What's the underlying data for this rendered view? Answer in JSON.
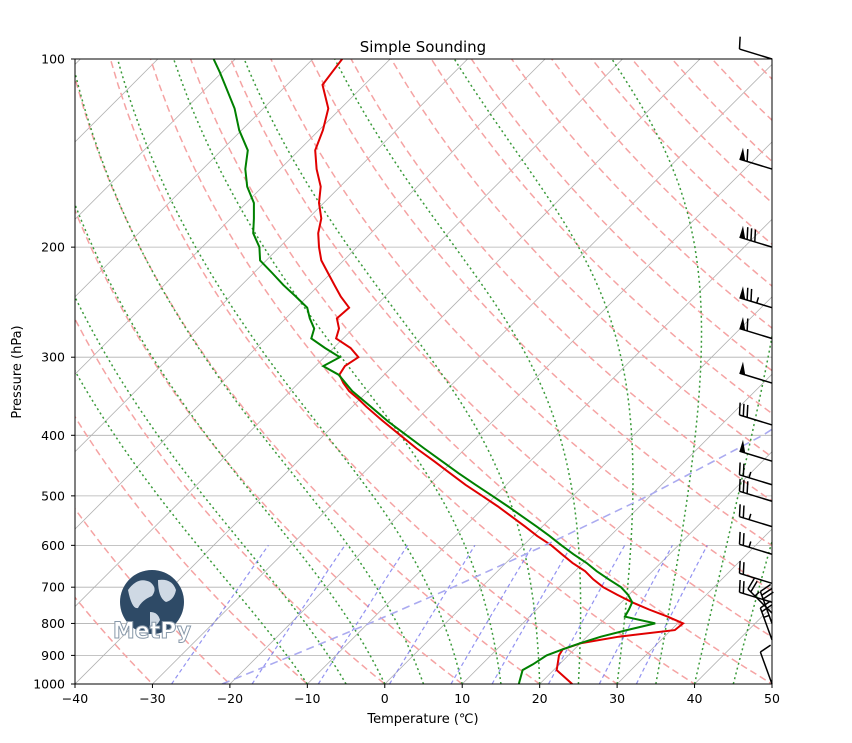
{
  "chart_data": {
    "type": "line",
    "title": "Simple Sounding",
    "xlabel": "Temperature (℃)",
    "ylabel": "Pressure (hPa)",
    "xlim": [
      -40,
      50
    ],
    "ylim": [
      1000,
      100
    ],
    "y_scale": "log",
    "skew": true,
    "x_ticks": [
      -40,
      -30,
      -20,
      -10,
      0,
      10,
      20,
      30,
      40,
      50
    ],
    "y_ticks": [
      1000,
      900,
      800,
      700,
      600,
      500,
      400,
      300,
      200,
      100
    ],
    "grid": true,
    "series": [
      {
        "quantity": "temperature",
        "color": "#e00000",
        "pressure": [
          1000,
          950,
          900,
          880,
          860,
          840,
          820,
          800,
          780,
          760,
          740,
          720,
          700,
          680,
          660,
          640,
          620,
          600,
          580,
          560,
          540,
          520,
          500,
          480,
          460,
          440,
          420,
          400,
          380,
          360,
          350,
          340,
          330,
          320,
          310,
          300,
          290,
          280,
          270,
          260,
          250,
          240,
          230,
          220,
          210,
          200,
          190,
          180,
          170,
          160,
          150,
          140,
          130,
          120,
          110,
          105,
          100
        ],
        "values": [
          24.2,
          20.4,
          18.8,
          18.5,
          20.1,
          24.1,
          30.5,
          30.7,
          27.8,
          24.5,
          21.4,
          18.5,
          15.7,
          13.4,
          11.3,
          8.6,
          6.1,
          3.6,
          0.6,
          -2.2,
          -5.2,
          -8.3,
          -11.7,
          -15.3,
          -18.8,
          -22.4,
          -26.3,
          -30.1,
          -34.1,
          -38.2,
          -40.2,
          -42.4,
          -44.2,
          -45.8,
          -46.2,
          -45.6,
          -47.8,
          -50.9,
          -51.8,
          -53.4,
          -53.2,
          -55.7,
          -58.0,
          -60.4,
          -62.9,
          -64.9,
          -66.8,
          -68.3,
          -70.6,
          -72.5,
          -75.3,
          -77.9,
          -79.5,
          -81.6,
          -85.4,
          -85.8,
          -86.2
        ]
      },
      {
        "quantity": "dewpoint",
        "color": "#008000",
        "pressure": [
          1000,
          950,
          930,
          900,
          880,
          860,
          840,
          820,
          800,
          780,
          760,
          740,
          720,
          700,
          680,
          660,
          640,
          620,
          600,
          580,
          560,
          540,
          520,
          500,
          480,
          460,
          440,
          420,
          400,
          380,
          360,
          340,
          320,
          310,
          300,
          290,
          280,
          270,
          260,
          250,
          240,
          230,
          220,
          210,
          200,
          190,
          180,
          170,
          160,
          150,
          140,
          130,
          120,
          110,
          105,
          100
        ],
        "values": [
          17.3,
          16.0,
          16.6,
          17.2,
          18.5,
          20.0,
          21.8,
          24.3,
          27.1,
          22.3,
          21.9,
          21.4,
          19.9,
          18.0,
          15.4,
          12.8,
          10.4,
          7.6,
          4.9,
          2.2,
          -0.7,
          -3.8,
          -7.0,
          -10.4,
          -14.0,
          -17.7,
          -21.4,
          -25.3,
          -29.3,
          -33.5,
          -37.6,
          -42.0,
          -45.9,
          -49.0,
          -48.0,
          -51.1,
          -54.1,
          -55.0,
          -56.9,
          -58.6,
          -61.5,
          -64.6,
          -67.6,
          -70.8,
          -72.6,
          -75.2,
          -77.0,
          -79.0,
          -82.0,
          -84.5,
          -86.6,
          -90.3,
          -93.7,
          -98.0,
          -100.3,
          -102.8
        ]
      },
      {
        "quantity": "parcel",
        "color": "#aaaaf0",
        "pressure": [
          1000,
          900,
          800,
          700,
          600,
          500,
          400,
          300,
          250,
          200,
          150,
          120,
          100
        ],
        "values": [
          -21.0,
          -15.6,
          -9.8,
          -3.7,
          2.8,
          9.7,
          16.7,
          22.1,
          22.2,
          19.7,
          13.6,
          7.9,
          2.5
        ]
      }
    ],
    "wind_barbs": [
      {
        "pressure": 100,
        "speed_kt": 10,
        "direction": "W"
      },
      {
        "pressure": 150,
        "speed_kt": 60,
        "direction": "W"
      },
      {
        "pressure": 200,
        "speed_kt": 80,
        "direction": "W"
      },
      {
        "pressure": 250,
        "speed_kt": 75,
        "direction": "W"
      },
      {
        "pressure": 280,
        "speed_kt": 60,
        "direction": "W"
      },
      {
        "pressure": 330,
        "speed_kt": 50,
        "direction": "W"
      },
      {
        "pressure": 385,
        "speed_kt": 30,
        "direction": "W"
      },
      {
        "pressure": 440,
        "speed_kt": 50,
        "direction": "W"
      },
      {
        "pressure": 480,
        "speed_kt": 25,
        "direction": "W"
      },
      {
        "pressure": 510,
        "speed_kt": 30,
        "direction": "W"
      },
      {
        "pressure": 560,
        "speed_kt": 25,
        "direction": "W"
      },
      {
        "pressure": 620,
        "speed_kt": 25,
        "direction": "W"
      },
      {
        "pressure": 690,
        "speed_kt": 20,
        "direction": "W"
      },
      {
        "pressure": 740,
        "speed_kt": 20,
        "direction": "W"
      },
      {
        "pressure": 770,
        "speed_kt": 25,
        "direction": "SW"
      },
      {
        "pressure": 800,
        "speed_kt": 30,
        "direction": "S"
      },
      {
        "pressure": 850,
        "speed_kt": 25,
        "direction": "S"
      },
      {
        "pressure": 1000,
        "speed_kt": 10,
        "direction": "S"
      }
    ],
    "colors": {
      "dry_adiabats": "#f5a3a3",
      "moist_adiabats": "#3a9a3a",
      "mixing_ratio": "#7777ee",
      "grid": "#b0b0b0"
    }
  },
  "logo": {
    "text": "MetPy"
  }
}
